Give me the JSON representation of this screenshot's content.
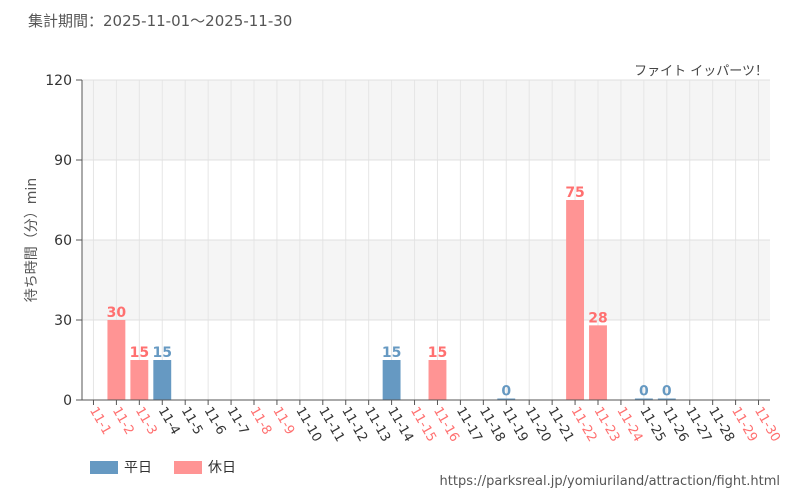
{
  "header": {
    "period_text": "集計期間：2025-11-01～2025-11-30"
  },
  "attraction_name": "ファイト イッパーツ！",
  "source_url": "https://parksreal.jp/yomiuriland/attraction/fight.html",
  "colors": {
    "weekday": "#6699c2",
    "holiday": "#ff9494",
    "holiday_text": "#ff7070",
    "weekday_text": "#6699c2"
  },
  "chart_data": {
    "type": "bar",
    "ylabel": "待ち時間（分）min",
    "ylim": [
      0,
      120
    ],
    "yticks": [
      0,
      30,
      60,
      90,
      120
    ],
    "grid": true,
    "legend_position": "bottom-left",
    "categories": [
      "11-1",
      "11-2",
      "11-3",
      "11-4",
      "11-5",
      "11-6",
      "11-7",
      "11-8",
      "11-9",
      "11-10",
      "11-11",
      "11-12",
      "11-13",
      "11-14",
      "11-15",
      "11-16",
      "11-17",
      "11-18",
      "11-19",
      "11-20",
      "11-21",
      "11-22",
      "11-23",
      "11-24",
      "11-25",
      "11-26",
      "11-27",
      "11-28",
      "11-29",
      "11-30"
    ],
    "day_types": [
      "holiday",
      "holiday",
      "holiday",
      "weekday",
      "weekday",
      "weekday",
      "weekday",
      "holiday",
      "holiday",
      "weekday",
      "weekday",
      "weekday",
      "weekday",
      "weekday",
      "holiday",
      "holiday",
      "weekday",
      "weekday",
      "weekday",
      "weekday",
      "weekday",
      "holiday",
      "holiday",
      "holiday",
      "weekday",
      "weekday",
      "weekday",
      "weekday",
      "holiday",
      "holiday"
    ],
    "values": [
      null,
      30,
      15,
      15,
      null,
      null,
      null,
      null,
      null,
      null,
      null,
      null,
      null,
      15,
      null,
      15,
      null,
      null,
      0,
      null,
      null,
      75,
      28,
      null,
      0,
      0,
      null,
      null,
      null,
      null
    ],
    "series": [
      {
        "name": "平日",
        "color_key": "weekday"
      },
      {
        "name": "休日",
        "color_key": "holiday"
      }
    ]
  }
}
